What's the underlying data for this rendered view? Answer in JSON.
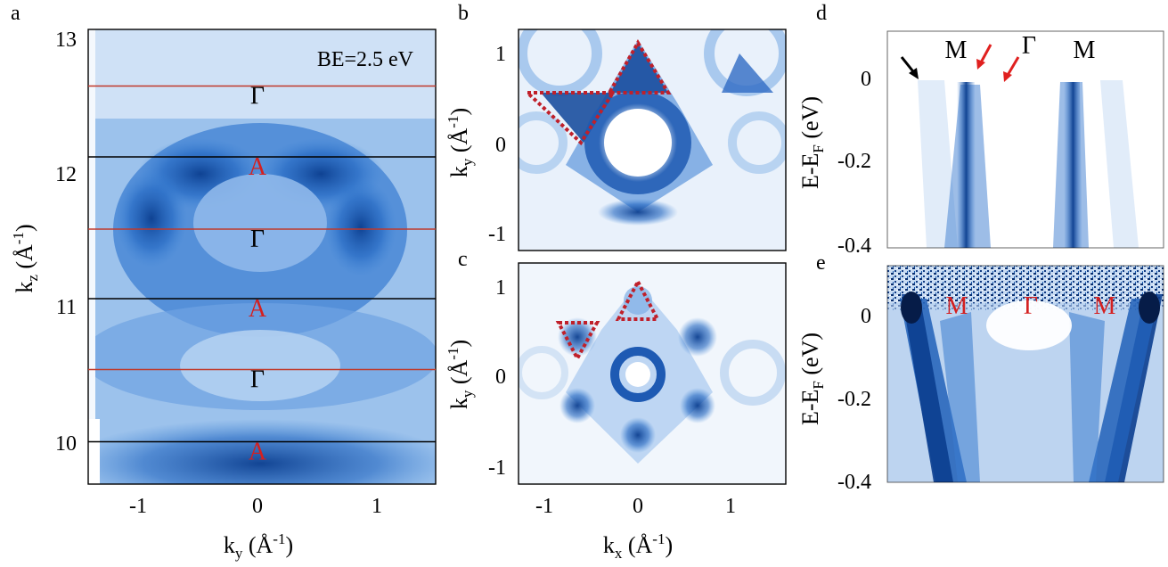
{
  "figure": {
    "panel_letters": [
      "a",
      "b",
      "c",
      "d",
      "e"
    ]
  },
  "panel_a": {
    "annotation": "BE=2.5 eV",
    "xlabel": "k",
    "xlabel_sub": "y",
    "xlabel_unit": " (Å",
    "xlabel_sup": "-1",
    "xlabel_close": ")",
    "ylabel": "k",
    "ylabel_sub": "z",
    "ylabel_unit": " (Å",
    "ylabel_sup": "-1",
    "ylabel_close": ")",
    "xticks": [
      "-1",
      "0",
      "1"
    ],
    "yticks": [
      "13",
      "12",
      "11",
      "10"
    ],
    "lines": [
      {
        "kz": 12.65,
        "color": "#c0392b",
        "label": "Γ",
        "label_color": "#000000"
      },
      {
        "kz": 12.12,
        "color": "#000000",
        "label": "A",
        "label_color": "#d42020"
      },
      {
        "kz": 11.58,
        "color": "#c0392b",
        "label": "Γ",
        "label_color": "#000000"
      },
      {
        "kz": 11.06,
        "color": "#000000",
        "label": "A",
        "label_color": "#d42020"
      },
      {
        "kz": 10.53,
        "color": "#c0392b",
        "label": "Γ",
        "label_color": "#000000"
      },
      {
        "kz": 9.99,
        "color": "#000000",
        "label": "A",
        "label_color": "#d42020"
      }
    ]
  },
  "panel_b": {
    "ylabel": "k",
    "ylabel_sub": "y",
    "ylabel_unit": " (Å",
    "ylabel_sup": "-1",
    "ylabel_close": ")",
    "yticks": [
      "1",
      "0",
      "-1"
    ]
  },
  "panel_c": {
    "ylabel": "k",
    "ylabel_sub": "y",
    "ylabel_unit": " (Å",
    "ylabel_sup": "-1",
    "ylabel_close": ")",
    "yticks": [
      "1",
      "0",
      "-1"
    ],
    "xticks": [
      "-1",
      "0",
      "1"
    ],
    "xlabel": "k",
    "xlabel_sub": "x",
    "xlabel_unit": " (Å",
    "xlabel_sup": "-1",
    "xlabel_close": ")"
  },
  "panel_d": {
    "ylabel": "E-E",
    "ylabel_sub": "F",
    "ylabel_unit": " (eV)",
    "yticks": [
      "0",
      "-0.2",
      "-0.4"
    ],
    "labels": [
      "M",
      "Γ",
      "M"
    ]
  },
  "panel_e": {
    "ylabel": "E-E",
    "ylabel_sub": "F",
    "ylabel_unit": " (eV)",
    "yticks": [
      "0",
      "-0.2",
      "-0.4"
    ],
    "labels": [
      "M",
      "Γ",
      "M"
    ]
  },
  "colors": {
    "accent_blue": "#1a5fb4",
    "red_marker": "#d42020"
  }
}
